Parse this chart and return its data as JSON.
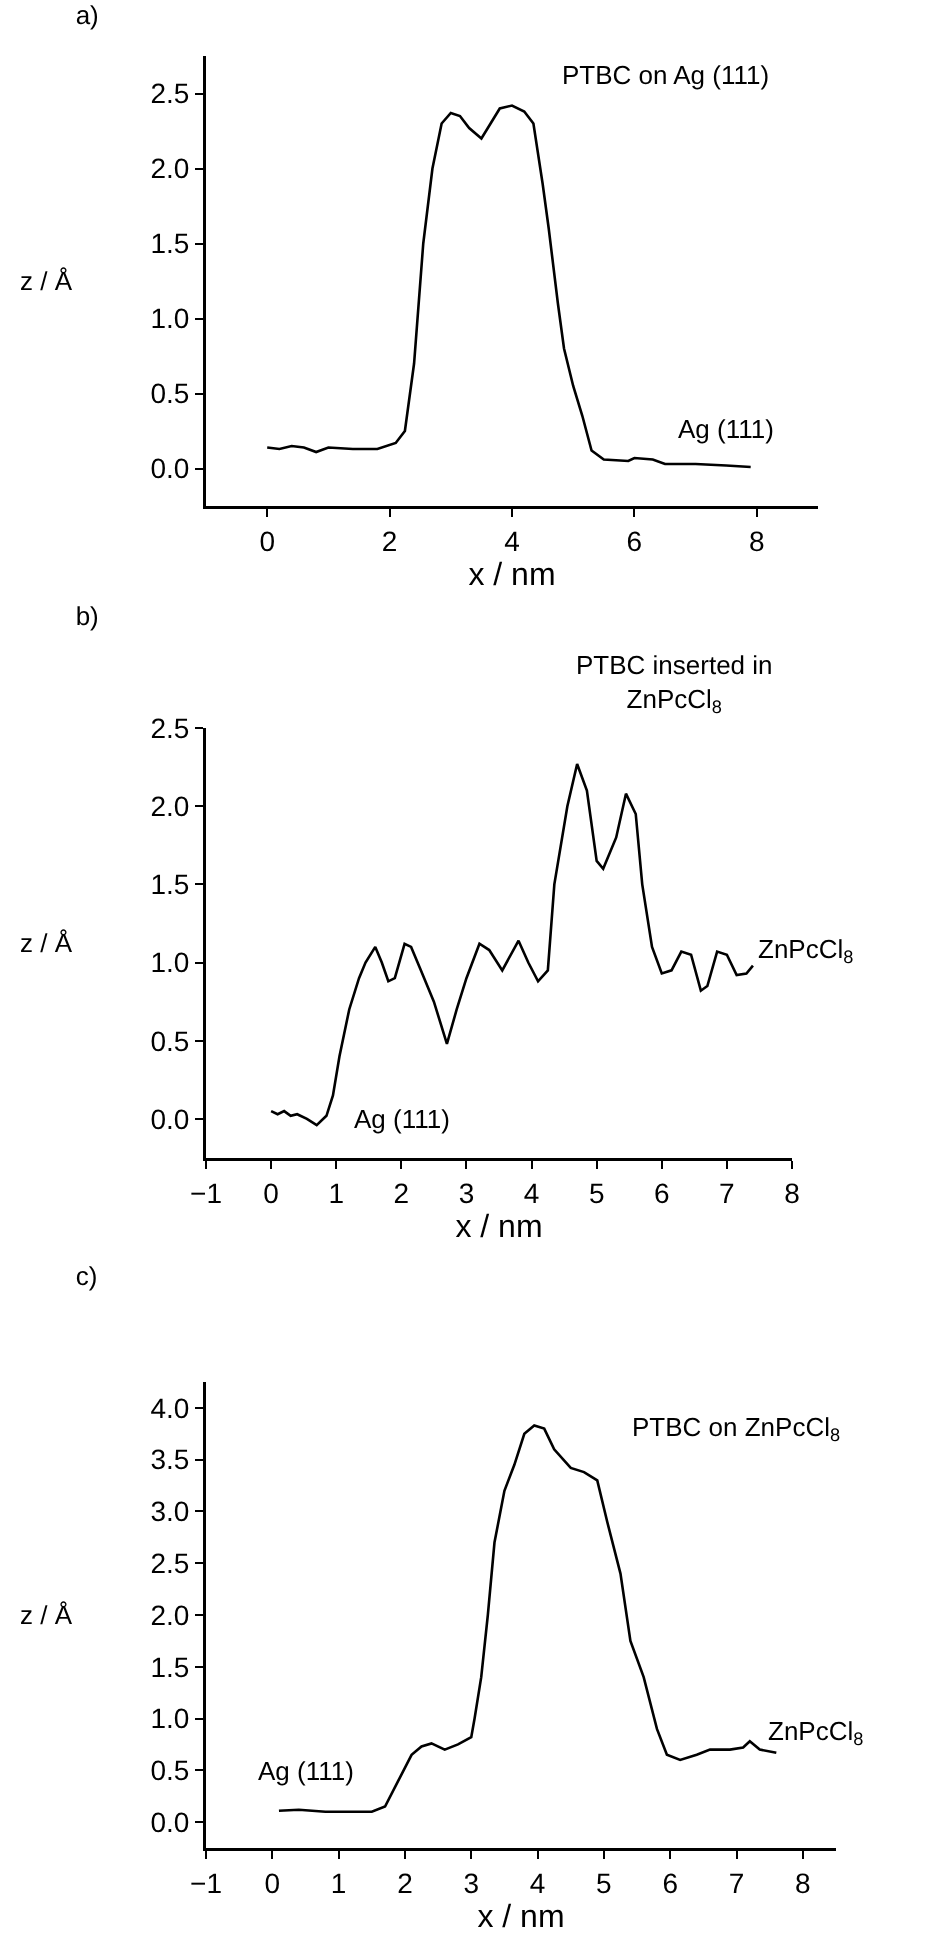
{
  "chart_data": [
    {
      "type": "line",
      "title": "a)",
      "xlabel": "x / nm",
      "ylabel": "z / Å",
      "xlim": [
        -1,
        9
      ],
      "ylim": [
        -0.25,
        2.75
      ],
      "xticks": [
        0,
        2,
        4,
        6,
        8
      ],
      "yticks": [
        {
          "value": 0,
          "label": "0.0"
        },
        0.5,
        {
          "value": 1,
          "label": "1.0"
        },
        1.5,
        {
          "value": 2,
          "label": "2.0"
        },
        2.5
      ],
      "grid": false,
      "annotations": [
        "PTBC on Ag (111)",
        "Ag (111)"
      ],
      "series": [
        {
          "color": "#000000",
          "x": [
            0,
            0.2,
            0.4,
            0.6,
            0.8,
            1.0,
            1.4,
            1.8,
            2.1,
            2.25,
            2.4,
            2.55,
            2.7,
            2.85,
            3.0,
            3.15,
            3.3,
            3.5,
            3.65,
            3.8,
            4.0,
            4.2,
            4.35,
            4.5,
            4.6,
            4.75,
            4.85,
            5.0,
            5.15,
            5.3,
            5.5,
            5.9,
            6.0,
            6.3,
            6.5,
            7.0,
            7.5,
            7.9
          ],
          "values": [
            0.14,
            0.13,
            0.15,
            0.14,
            0.11,
            0.14,
            0.13,
            0.13,
            0.17,
            0.25,
            0.7,
            1.5,
            2.0,
            2.3,
            2.37,
            2.35,
            2.27,
            2.2,
            2.3,
            2.4,
            2.42,
            2.38,
            2.3,
            1.9,
            1.6,
            1.1,
            0.8,
            0.55,
            0.35,
            0.12,
            0.06,
            0.05,
            0.07,
            0.06,
            0.03,
            0.03,
            0.02,
            0.01
          ]
        }
      ]
    },
    {
      "type": "line",
      "title": "b)",
      "xlabel": "x / nm",
      "ylabel": "z / Å",
      "xlim": [
        -1,
        8
      ],
      "ylim": [
        -0.25,
        2.5
      ],
      "xticks": [
        {
          "value": -1,
          "label": "−1"
        },
        0,
        1,
        2,
        3,
        4,
        5,
        6,
        7,
        8
      ],
      "yticks": [
        {
          "value": 0,
          "label": "0.0"
        },
        0.5,
        {
          "value": 1,
          "label": "1.0"
        },
        1.5,
        {
          "value": 2,
          "label": "2.0"
        },
        2.5
      ],
      "grid": false,
      "annotations": [
        "PTBC inserted in ZnPcCl$_{8}$",
        "ZnPcCl$_{8}$",
        "Ag (111)"
      ],
      "series": [
        {
          "color": "#000000",
          "x": [
            0,
            0.1,
            0.2,
            0.3,
            0.4,
            0.55,
            0.7,
            0.85,
            0.95,
            1.05,
            1.2,
            1.35,
            1.45,
            1.6,
            1.7,
            1.8,
            1.9,
            2.05,
            2.15,
            2.3,
            2.5,
            2.7,
            2.85,
            3.0,
            3.2,
            3.35,
            3.55,
            3.8,
            3.95,
            4.1,
            4.25,
            4.35,
            4.55,
            4.7,
            4.85,
            5.0,
            5.1,
            5.3,
            5.45,
            5.6,
            5.7,
            5.85,
            6.0,
            6.15,
            6.3,
            6.45,
            6.6,
            6.7,
            6.85,
            7.0,
            7.15,
            7.3,
            7.4
          ],
          "values": [
            0.05,
            0.03,
            0.05,
            0.02,
            0.03,
            0.0,
            -0.04,
            0.02,
            0.15,
            0.4,
            0.7,
            0.9,
            1.0,
            1.1,
            1.0,
            0.88,
            0.9,
            1.12,
            1.1,
            0.95,
            0.75,
            0.48,
            0.7,
            0.9,
            1.12,
            1.08,
            0.95,
            1.14,
            1.0,
            0.88,
            0.95,
            1.5,
            2.0,
            2.27,
            2.1,
            1.65,
            1.6,
            1.8,
            2.08,
            1.95,
            1.5,
            1.1,
            0.93,
            0.95,
            1.07,
            1.05,
            0.82,
            0.85,
            1.07,
            1.05,
            0.92,
            0.93,
            0.98
          ]
        }
      ]
    },
    {
      "type": "line",
      "title": "c)",
      "xlabel": "x / nm",
      "ylabel": "z / Å",
      "xlim": [
        -1,
        8.5
      ],
      "ylim": [
        -0.25,
        4.25
      ],
      "xticks": [
        {
          "value": -1,
          "label": "−1"
        },
        0,
        1,
        2,
        3,
        4,
        5,
        6,
        7,
        8
      ],
      "yticks": [
        {
          "value": 0,
          "label": "0.0"
        },
        0.5,
        {
          "value": 1,
          "label": "1.0"
        },
        1.5,
        {
          "value": 2,
          "label": "2.0"
        },
        2.5,
        {
          "value": 3,
          "label": "3.0"
        },
        3.5,
        {
          "value": 4,
          "label": "4.0"
        }
      ],
      "grid": false,
      "annotations": [
        "PTBC on ZnPcCl$_{8}$",
        "ZnPcCl$_{8}$",
        "Ag (111)"
      ],
      "series": [
        {
          "color": "#000000",
          "x": [
            0.1,
            0.4,
            0.8,
            1.2,
            1.5,
            1.7,
            1.9,
            2.1,
            2.25,
            2.4,
            2.6,
            2.8,
            3.0,
            3.05,
            3.15,
            3.25,
            3.35,
            3.5,
            3.65,
            3.8,
            3.95,
            4.1,
            4.25,
            4.5,
            4.7,
            4.9,
            5.05,
            5.25,
            5.4,
            5.6,
            5.8,
            5.95,
            6.15,
            6.4,
            6.6,
            6.9,
            7.1,
            7.2,
            7.35,
            7.6
          ],
          "values": [
            0.11,
            0.12,
            0.1,
            0.1,
            0.1,
            0.15,
            0.4,
            0.65,
            0.73,
            0.76,
            0.7,
            0.75,
            0.82,
            1.0,
            1.4,
            2.0,
            2.7,
            3.2,
            3.45,
            3.75,
            3.83,
            3.8,
            3.6,
            3.42,
            3.38,
            3.3,
            2.9,
            2.4,
            1.75,
            1.4,
            0.9,
            0.65,
            0.6,
            0.65,
            0.7,
            0.7,
            0.72,
            0.78,
            0.7,
            0.67
          ]
        }
      ]
    }
  ]
}
